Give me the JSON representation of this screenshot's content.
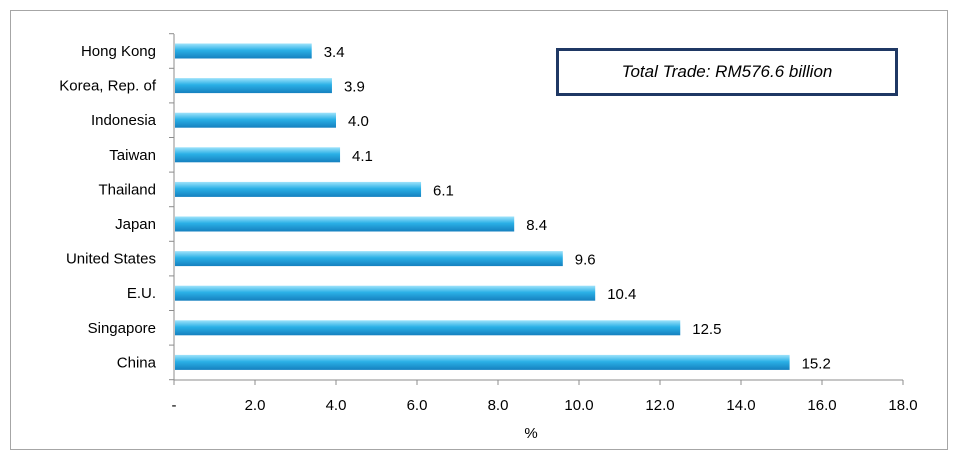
{
  "chart_data": {
    "type": "bar",
    "orientation": "horizontal",
    "categories": [
      "Hong Kong",
      "Korea, Rep. of",
      "Indonesia",
      "Taiwan",
      "Thailand",
      "Japan",
      "United States",
      "E.U.",
      "Singapore",
      "China"
    ],
    "values": [
      3.4,
      3.9,
      4.0,
      4.1,
      6.1,
      8.4,
      9.6,
      10.4,
      12.5,
      15.2
    ],
    "value_labels": [
      "3.4",
      "3.9",
      "4.0",
      "4.1",
      "6.1",
      "8.4",
      "9.6",
      "10.4",
      "12.5",
      "15.2"
    ],
    "x_ticks": [
      "-",
      "2.0",
      "4.0",
      "6.0",
      "8.0",
      "10.0",
      "12.0",
      "14.0",
      "16.0",
      "18.0"
    ],
    "xlabel": "%",
    "ylabel": "",
    "xlim": [
      0,
      18
    ],
    "grid": false,
    "bar_color": "#29a8e0",
    "annotation": "Total Trade: RM576.6 billion"
  }
}
